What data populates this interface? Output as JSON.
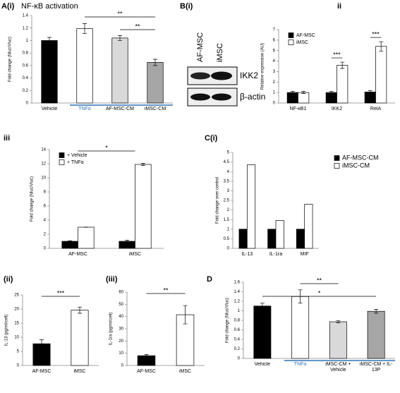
{
  "blot": {
    "label": "B(i)",
    "lanes": [
      "AF-MSC",
      "iMSC"
    ],
    "bands": [
      "IKK2",
      "β-actin"
    ]
  },
  "chart_data": [
    {
      "type": "bar",
      "label": "A(i)",
      "title": "NF-κB activation",
      "ylabel": "Fold change (Nluc/Vluc)",
      "categories": [
        "Vehicle",
        "TNFα",
        "AF-MSC-CM",
        "iMSC-CM"
      ],
      "values": [
        1.0,
        1.19,
        1.04,
        0.65
      ],
      "errors": [
        0.05,
        0.08,
        0.04,
        0.05
      ],
      "colors": [
        "#000000",
        "#ffffff",
        "#d9d9d9",
        "#a6a6a6"
      ],
      "ylim": [
        0,
        1.4
      ],
      "yticks": [
        0,
        0.2,
        0.4,
        0.6,
        0.8,
        1,
        1.2,
        1.4
      ],
      "annotations": [
        {
          "text": "**",
          "between": [
            "TNFα",
            "iMSC-CM"
          ]
        },
        {
          "text": "**",
          "between": [
            "AF-MSC-CM",
            "iMSC-CM"
          ]
        }
      ],
      "underline_from": "TNFα",
      "underline_color": "#2e75b6"
    },
    {
      "type": "bar",
      "label": "ii",
      "ylabel": "Relative expression (AU)",
      "categories": [
        "NF-κB1",
        "IKK2",
        "RelA"
      ],
      "series": [
        {
          "name": "AF-MSC",
          "color": "#000000",
          "values": [
            1,
            1,
            1.05
          ],
          "errors": [
            0.12,
            0.1,
            0.12
          ]
        },
        {
          "name": "iMSC",
          "color": "#ffffff",
          "values": [
            1,
            3.6,
            5.4
          ],
          "errors": [
            0.1,
            0.3,
            0.45
          ]
        }
      ],
      "ylim": [
        0,
        7
      ],
      "yticks": [
        0,
        1,
        2,
        3,
        4,
        5,
        6,
        7
      ],
      "legend": "top-left",
      "annotations": [
        {
          "text": "***",
          "between": [
            "IKK2"
          ]
        },
        {
          "text": "***",
          "between": [
            "RelA"
          ]
        }
      ]
    },
    {
      "type": "bar",
      "label": "iii",
      "ylabel": "Fold change (Nluc/Vluc)",
      "categories": [
        "AF-MSC",
        "iMSC"
      ],
      "series": [
        {
          "name": "+ Vehicle",
          "color": "#000000",
          "values": [
            1,
            1
          ],
          "errors": [
            0.08,
            0.15
          ]
        },
        {
          "name": "+ TNFα",
          "color": "#ffffff",
          "values": [
            3,
            11.9
          ],
          "errors": [
            0.02,
            0.15
          ]
        }
      ],
      "ylim": [
        0,
        14
      ],
      "yticks": [
        0,
        2,
        4,
        6,
        8,
        10,
        12,
        14
      ],
      "legend": "top-left",
      "annotations": [
        {
          "text": "*",
          "between": [
            "AF-MSC",
            "iMSC"
          ]
        }
      ]
    },
    {
      "type": "bar",
      "label": "C(i)",
      "ylabel": "Fold change over control",
      "categories": [
        "IL-13",
        "IL-1ra",
        "MIF"
      ],
      "series": [
        {
          "name": "AF-MSC-CM",
          "color": "#000000",
          "values": [
            1,
            1,
            1
          ]
        },
        {
          "name": "iMSC-CM",
          "color": "#ffffff",
          "values": [
            4.35,
            1.45,
            2.3
          ]
        }
      ],
      "ylim": [
        0,
        5
      ],
      "yticks": [
        0,
        0.5,
        1,
        1.5,
        2,
        2.5,
        3,
        3.5,
        4,
        4.5,
        5
      ],
      "legend": "outside-right"
    },
    {
      "type": "bar",
      "label": "(ii)",
      "ylabel": "IL-13 (pg/ml/cell)",
      "categories": [
        "AF-MSC",
        "iMSC"
      ],
      "values": [
        7.7,
        19.6
      ],
      "errors": [
        1.4,
        1.1
      ],
      "colors": [
        "#000000",
        "#ffffff"
      ],
      "ylim": [
        0,
        25
      ],
      "yticks": [
        0,
        5,
        10,
        15,
        20,
        25
      ],
      "annotations": [
        {
          "text": "***",
          "between": [
            "AF-MSC",
            "iMSC"
          ]
        }
      ]
    },
    {
      "type": "bar",
      "label": "(iii)",
      "ylabel": "IL-1ra (pg/ml/cell)",
      "categories": [
        "AF-MSC",
        "iMSC"
      ],
      "values": [
        8,
        41.5
      ],
      "errors": [
        1,
        7.5
      ],
      "colors": [
        "#000000",
        "#ffffff"
      ],
      "ylim": [
        0,
        60
      ],
      "yticks": [
        0,
        10,
        20,
        30,
        40,
        50,
        60
      ],
      "annotations": [
        {
          "text": "**",
          "between": [
            "AF-MSC",
            "iMSC"
          ]
        }
      ]
    },
    {
      "type": "bar",
      "label": "D",
      "ylabel": "Fold change (Nluc/Vluc)",
      "categories": [
        "Vehicle",
        "TNFα",
        "iMSC-CM + Vehicle",
        "iMSC-CM + IL-13P"
      ],
      "values": [
        1.1,
        1.3,
        0.77,
        0.99
      ],
      "errors": [
        0.06,
        0.14,
        0.02,
        0.04
      ],
      "colors": [
        "#000000",
        "#ffffff",
        "#d9d9d9",
        "#a6a6a6"
      ],
      "ylim": [
        0,
        1.6
      ],
      "yticks": [
        0,
        0.2,
        0.4,
        0.6,
        0.8,
        1,
        1.2,
        1.4,
        1.6
      ],
      "annotations": [
        {
          "text": "**",
          "between": [
            "TNFα",
            "iMSC-CM + Vehicle"
          ]
        },
        {
          "text": "*",
          "between": [
            "Vehicle",
            "iMSC-CM + IL-13P"
          ]
        }
      ],
      "underline_from": "TNFα",
      "underline_color": "#2e75b6"
    }
  ]
}
